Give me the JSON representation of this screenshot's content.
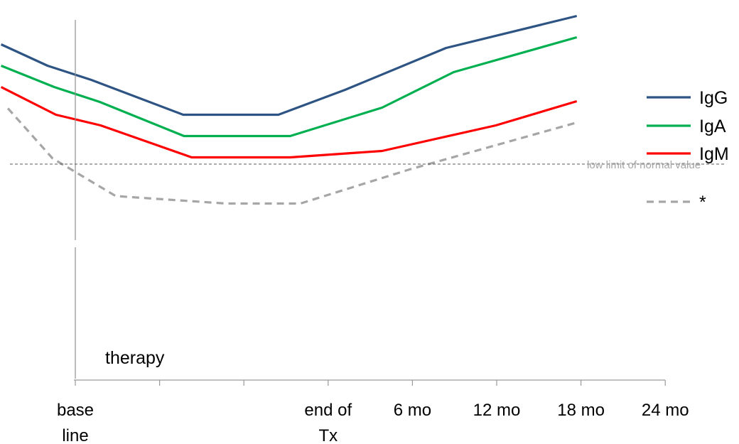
{
  "chart_data": {
    "type": "line",
    "title": "",
    "xlabel": "",
    "ylabel": "",
    "grid": false,
    "legend_position": "right",
    "x_ticks": [
      {
        "label": [
          "base",
          "line"
        ],
        "pos": 0
      },
      {
        "label": [],
        "pos": 1
      },
      {
        "label": [],
        "pos": 2
      },
      {
        "label": [
          "end of",
          "Tx"
        ],
        "pos": 3
      },
      {
        "label": [
          "6 mo"
        ],
        "pos": 4
      },
      {
        "label": [
          "12 mo"
        ],
        "pos": 5
      },
      {
        "label": [
          "18 mo"
        ],
        "pos": 6
      },
      {
        "label": [
          "24 mo"
        ],
        "pos": 7
      }
    ],
    "xlim": [
      -0.88,
      7
    ],
    "ylim": [
      0,
      100
    ],
    "reference_line": {
      "label": "low limit of normal value",
      "y": 60.8
    },
    "annotation": {
      "label": "therapy"
    },
    "series": [
      {
        "name": "IgG",
        "color": "#2e5484",
        "dash": false,
        "points": [
          [
            -0.88,
            94.5
          ],
          [
            -0.33,
            88.5
          ],
          [
            0.19,
            84.5
          ],
          [
            1.28,
            74.7
          ],
          [
            2.41,
            74.7
          ],
          [
            3.2,
            81.7
          ],
          [
            4.4,
            93.5
          ],
          [
            5.95,
            102.5
          ]
        ]
      },
      {
        "name": "IgA",
        "color": "#00b050",
        "dash": false,
        "points": [
          [
            -0.88,
            88.5
          ],
          [
            -0.25,
            82.5
          ],
          [
            0.29,
            78.3
          ],
          [
            1.29,
            68.7
          ],
          [
            2.55,
            68.7
          ],
          [
            3.64,
            76.7
          ],
          [
            4.49,
            86.7
          ],
          [
            5.95,
            96.5
          ]
        ]
      },
      {
        "name": "IgM",
        "color": "#ff0000",
        "dash": false,
        "points": [
          [
            -0.88,
            82.5
          ],
          [
            -0.23,
            74.7
          ],
          [
            0.3,
            71.7
          ],
          [
            1.38,
            62.7
          ],
          [
            2.55,
            62.7
          ],
          [
            3.64,
            64.5
          ],
          [
            4.99,
            71.7
          ],
          [
            5.95,
            78.5
          ]
        ]
      },
      {
        "name": "*",
        "color": "#a6a6a6",
        "dash": true,
        "points": [
          [
            -0.8,
            76.5
          ],
          [
            -0.27,
            62.4
          ],
          [
            0.48,
            51.8
          ],
          [
            1.79,
            49.7
          ],
          [
            2.67,
            49.7
          ],
          [
            3.98,
            59.4
          ],
          [
            5.95,
            72.5
          ]
        ]
      }
    ]
  }
}
